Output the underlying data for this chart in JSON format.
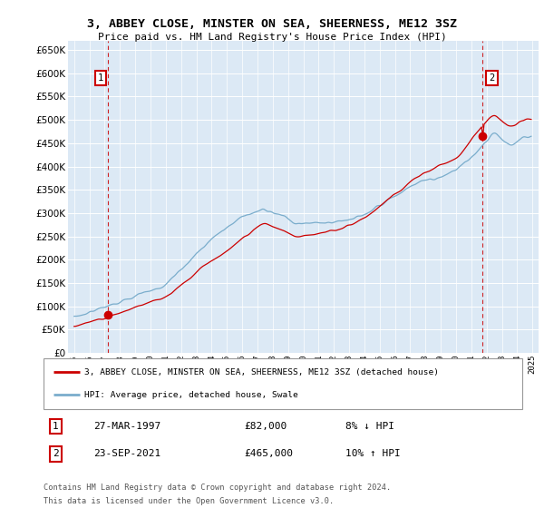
{
  "title": "3, ABBEY CLOSE, MINSTER ON SEA, SHEERNESS, ME12 3SZ",
  "subtitle": "Price paid vs. HM Land Registry's House Price Index (HPI)",
  "legend_line1": "3, ABBEY CLOSE, MINSTER ON SEA, SHEERNESS, ME12 3SZ (detached house)",
  "legend_line2": "HPI: Average price, detached house, Swale",
  "ann1_date": "27-MAR-1997",
  "ann1_price": "£82,000",
  "ann1_hpi": "8% ↓ HPI",
  "ann2_date": "23-SEP-2021",
  "ann2_price": "£465,000",
  "ann2_hpi": "10% ↑ HPI",
  "footnote1": "Contains HM Land Registry data © Crown copyright and database right 2024.",
  "footnote2": "This data is licensed under the Open Government Licence v3.0.",
  "red_color": "#cc0000",
  "blue_color": "#7aadcc",
  "bg_color": "#dce9f5",
  "sale1_year": 1997.23,
  "sale2_year": 2021.73,
  "sale1_price": 82000,
  "sale2_price": 465000,
  "ylim_min": 0,
  "ylim_max": 670000,
  "xlim_min": 1994.6,
  "xlim_max": 2025.4
}
